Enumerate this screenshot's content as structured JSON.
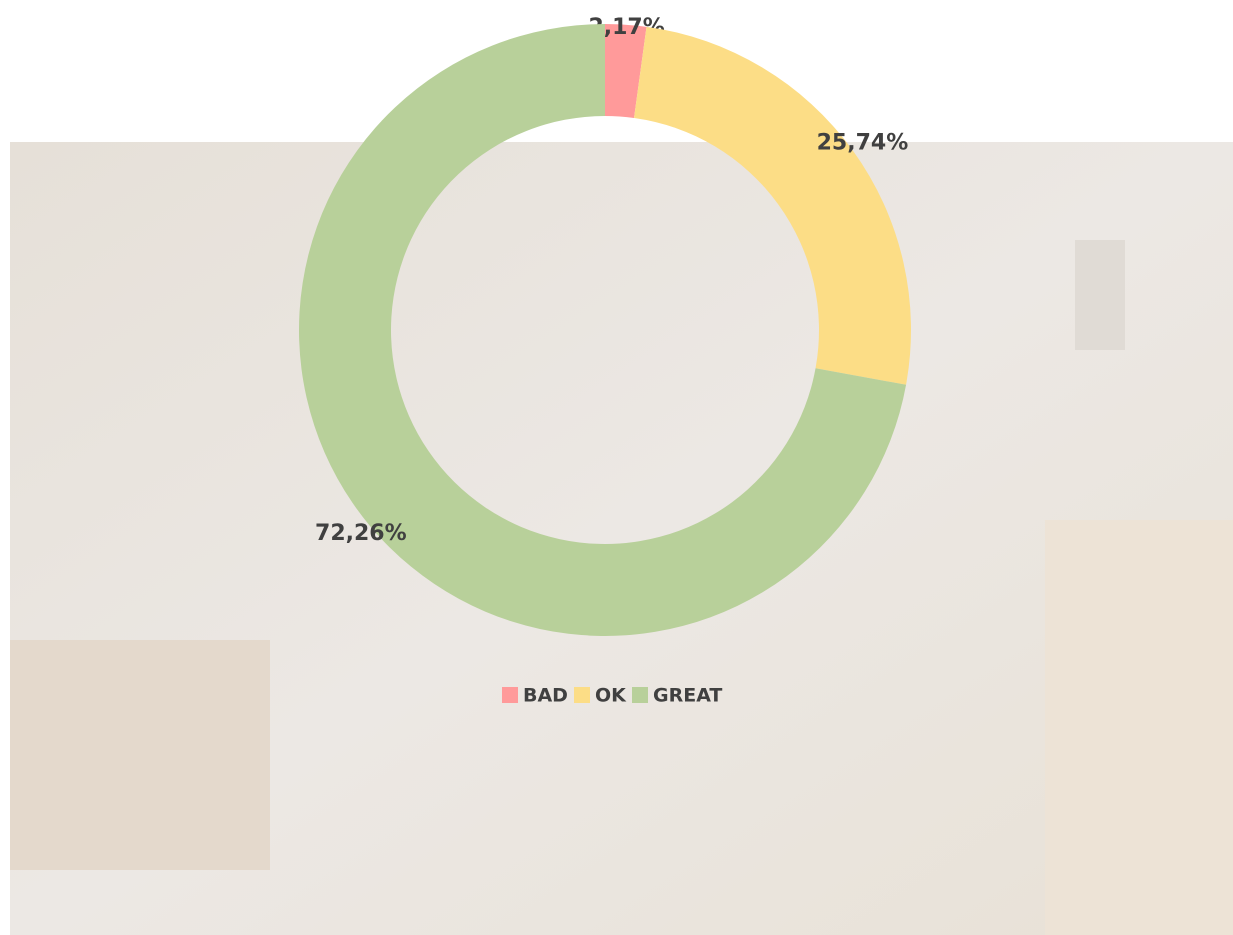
{
  "chart_data": {
    "type": "pie",
    "donut": true,
    "categories": [
      "BAD",
      "OK",
      "GREAT"
    ],
    "values": [
      2.17,
      25.74,
      72.26
    ],
    "value_labels": [
      "2,17%",
      "25,74%",
      "72,26%"
    ],
    "colors": [
      "#ff9a9a",
      "#fcdd86",
      "#b8d09a"
    ],
    "legend": "bottom"
  }
}
